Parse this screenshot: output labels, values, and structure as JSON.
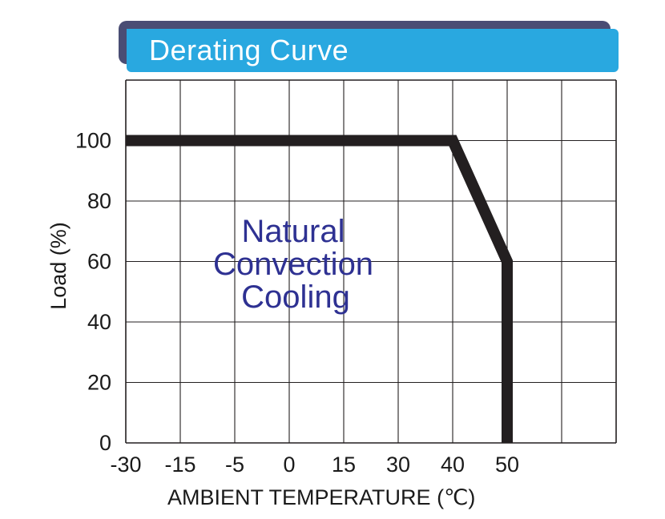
{
  "chart_data": {
    "type": "line",
    "title": "Derating Curve",
    "xlabel": "AMBIENT TEMPERATURE",
    "xlabel_unit": "(℃)",
    "ylabel": "Load",
    "ylabel_unit": "(%)",
    "x_tick_labels": [
      "-30",
      "-15",
      "-5",
      "0",
      "15",
      "30",
      "40",
      "50"
    ],
    "y_tick_labels": [
      "0",
      "20",
      "40",
      "60",
      "80",
      "100"
    ],
    "y_ticks": [
      0,
      20,
      40,
      60,
      80,
      100
    ],
    "ylim": [
      0,
      120
    ],
    "grid": true,
    "series": [
      {
        "x": [
          "-30",
          "40",
          "50",
          "50"
        ],
        "y": [
          100,
          100,
          60,
          0
        ]
      }
    ],
    "annotation": [
      "Natural",
      "Convection",
      "Cooling"
    ],
    "colors": {
      "line": "#231f20",
      "grid": "#231f20",
      "annotation": "#2e3192",
      "banner": "#29a8e0",
      "banner_shadow": "#4a4d74"
    }
  }
}
